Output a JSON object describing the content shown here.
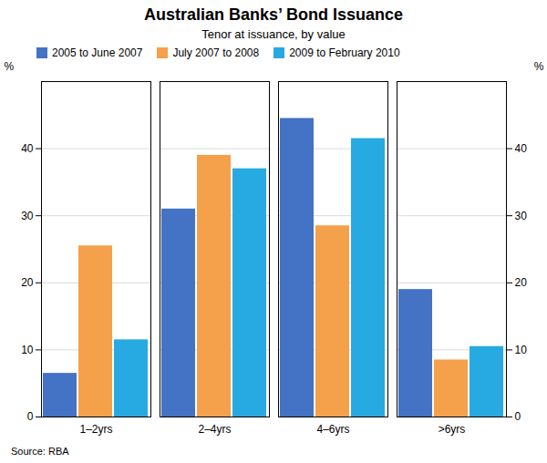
{
  "chart_data": {
    "type": "bar",
    "title": "Australian Banks’ Bond Issuance",
    "subtitle": "Tenor at issuance, by value",
    "source": "Source: RBA",
    "categories": [
      "1–2yrs",
      "2–4yrs",
      "4–6yrs",
      ">6yrs"
    ],
    "series": [
      {
        "name": "2005 to June 2007",
        "color": "#4472c4",
        "values": [
          6.5,
          31.0,
          44.5,
          19.0
        ]
      },
      {
        "name": "July 2007 to 2008",
        "color": "#f5a04a",
        "values": [
          25.5,
          39.0,
          28.5,
          8.5
        ]
      },
      {
        "name": "2009 to February 2010",
        "color": "#27aae1",
        "values": [
          11.5,
          37.0,
          41.5,
          10.5
        ]
      }
    ],
    "ylabel": "%",
    "y2label": "%",
    "ylim": [
      0,
      50
    ],
    "yticks": [
      0,
      10,
      20,
      30,
      40
    ],
    "y2lim": [
      0,
      50
    ],
    "y2ticks": [
      0,
      10,
      20,
      30,
      40
    ],
    "grid": true,
    "legend": "upper left"
  }
}
